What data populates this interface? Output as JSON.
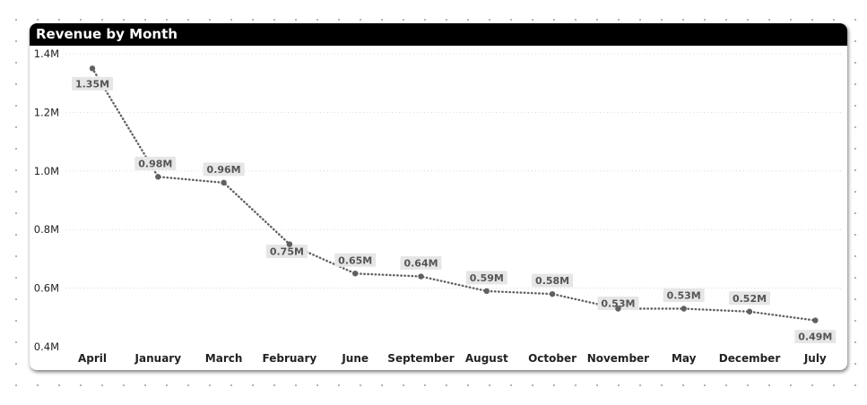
{
  "visual": {
    "title": "Revenue by Month"
  },
  "colors": {
    "line": "#606060",
    "label_bg": "#e6e6e6",
    "header_bg": "#000000",
    "gridline": "#d8d8d8"
  },
  "chart_data": {
    "type": "line",
    "title": "Revenue by Month",
    "xlabel": "",
    "ylabel": "",
    "categories": [
      "April",
      "January",
      "March",
      "February",
      "June",
      "September",
      "August",
      "October",
      "November",
      "May",
      "December",
      "July"
    ],
    "series": [
      {
        "values": [
          1.35,
          0.98,
          0.96,
          0.75,
          0.65,
          0.64,
          0.59,
          0.58,
          0.53,
          0.53,
          0.52,
          0.49
        ]
      }
    ],
    "data_labels": [
      "1.35M",
      "0.98M",
      "0.96M",
      "0.75M",
      "0.65M",
      "0.64M",
      "0.59M",
      "0.58M",
      "0.53M",
      "0.53M",
      "0.52M",
      "0.49M"
    ],
    "y_ticks": [
      1.4,
      1.2,
      1.0,
      0.8,
      0.6,
      0.4
    ],
    "y_tick_labels": [
      "1.4M",
      "1.2M",
      "1.0M",
      "0.8M",
      "0.6M",
      "0.4M"
    ],
    "ylim": [
      0.4,
      1.4
    ],
    "units": "M",
    "grid": true,
    "legend": "none",
    "line_style": "dotted"
  }
}
